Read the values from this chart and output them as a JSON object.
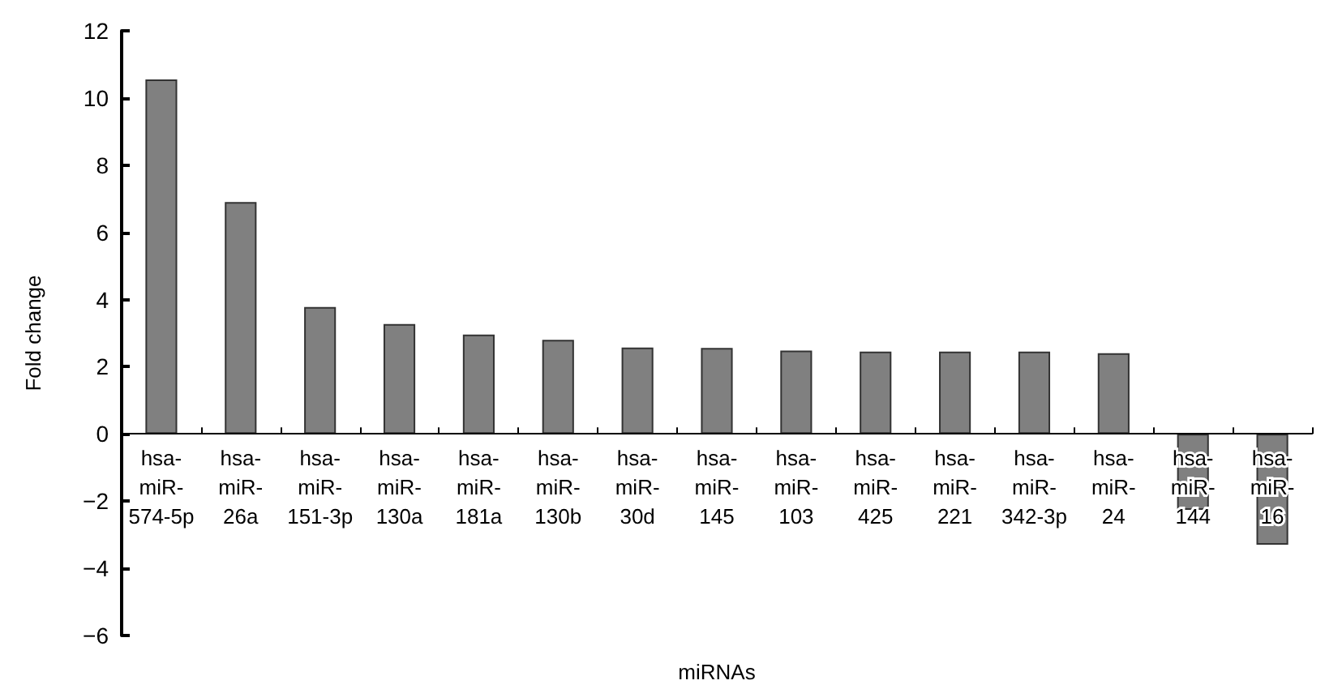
{
  "chart_data": {
    "type": "bar",
    "xlabel": "miRNAs",
    "ylabel": "Fold change",
    "categories": [
      "hsa-miR-574-5p",
      "hsa-miR-26a",
      "hsa-miR-151-3p",
      "hsa-miR-130a",
      "hsa-miR-181a",
      "hsa-miR-130b",
      "hsa-miR-30d",
      "hsa-miR-145",
      "hsa-miR-103",
      "hsa-miR-425",
      "hsa-miR-221",
      "hsa-miR-342-3p",
      "hsa-miR-24",
      "hsa-miR-144",
      "hsa-miR-16"
    ],
    "series": [
      {
        "color": "#808080",
        "values": [
          10.55,
          6.9,
          3.78,
          3.27,
          2.96,
          2.8,
          2.57,
          2.56,
          2.48,
          2.45,
          2.45,
          2.45,
          2.4,
          -2.26,
          -3.3
        ]
      }
    ],
    "ylim": [
      -6,
      12
    ],
    "yticks": [
      {
        "value": -6,
        "label": "−6"
      },
      {
        "value": -4,
        "label": "−4"
      },
      {
        "value": -2,
        "label": "−2"
      },
      0,
      2,
      4,
      6,
      8,
      10,
      12
    ]
  }
}
